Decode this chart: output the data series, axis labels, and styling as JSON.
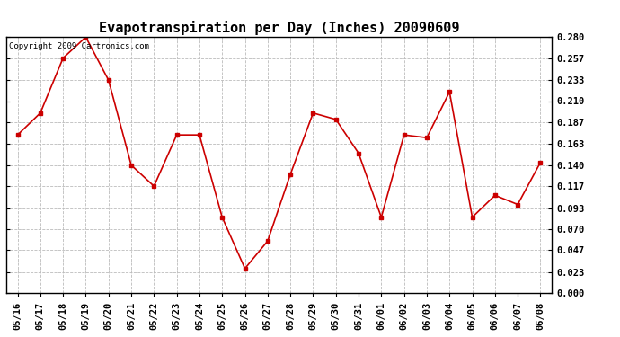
{
  "title": "Evapotranspiration per Day (Inches) 20090609",
  "copyright_text": "Copyright 2009 Cartronics.com",
  "dates": [
    "05/16",
    "05/17",
    "05/18",
    "05/19",
    "05/20",
    "05/21",
    "05/22",
    "05/23",
    "05/24",
    "05/25",
    "05/26",
    "05/27",
    "05/28",
    "05/29",
    "05/30",
    "05/31",
    "06/01",
    "06/02",
    "06/03",
    "06/04",
    "06/05",
    "06/06",
    "06/07",
    "06/08"
  ],
  "values": [
    0.173,
    0.197,
    0.257,
    0.28,
    0.233,
    0.14,
    0.117,
    0.173,
    0.173,
    0.083,
    0.027,
    0.057,
    0.13,
    0.197,
    0.19,
    0.153,
    0.083,
    0.173,
    0.17,
    0.22,
    0.083,
    0.107,
    0.097,
    0.143
  ],
  "line_color": "#cc0000",
  "marker": "s",
  "marker_size": 2.5,
  "line_width": 1.2,
  "ylim": [
    0.0,
    0.28
  ],
  "yticks": [
    0.0,
    0.023,
    0.047,
    0.07,
    0.093,
    0.117,
    0.14,
    0.163,
    0.187,
    0.21,
    0.233,
    0.257,
    0.28
  ],
  "background_color": "#ffffff",
  "grid_color": "#bbbbbb",
  "title_fontsize": 11,
  "tick_fontsize": 7.5,
  "copyright_fontsize": 6.5
}
